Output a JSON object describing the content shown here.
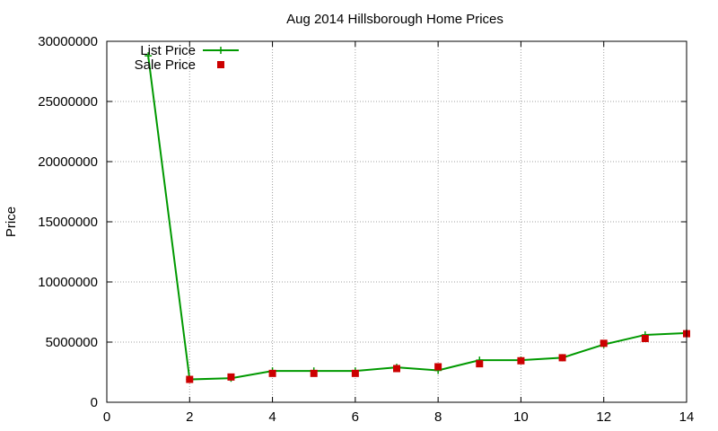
{
  "chart_data": {
    "type": "line",
    "title": "Aug 2014 Hillsborough Home Prices",
    "xlabel": "",
    "ylabel": "Price",
    "xlim": [
      0,
      14
    ],
    "ylim": [
      0,
      30000000
    ],
    "x_ticks": [
      "0",
      "2",
      "4",
      "6",
      "8",
      "10",
      "12",
      "14"
    ],
    "y_ticks": [
      "0",
      "5000000",
      "10000000",
      "15000000",
      "20000000",
      "25000000",
      "30000000"
    ],
    "grid": true,
    "legend_position": "top-left",
    "series": [
      {
        "name": "List Price",
        "style": "line-with-plus-markers",
        "color": "#009900",
        "points": [
          {
            "x": 1,
            "y": 28800000
          },
          {
            "x": 2,
            "y": 1900000
          },
          {
            "x": 3,
            "y": 2000000
          },
          {
            "x": 4,
            "y": 2600000
          },
          {
            "x": 5,
            "y": 2600000
          },
          {
            "x": 6,
            "y": 2600000
          },
          {
            "x": 7,
            "y": 2900000
          },
          {
            "x": 8,
            "y": 2650000
          },
          {
            "x": 9,
            "y": 3500000
          },
          {
            "x": 10,
            "y": 3500000
          },
          {
            "x": 11,
            "y": 3700000
          },
          {
            "x": 12,
            "y": 4800000
          },
          {
            "x": 13,
            "y": 5600000
          },
          {
            "x": 14,
            "y": 5750000
          }
        ]
      },
      {
        "name": "Sale Price",
        "style": "square-markers",
        "color": "#cc0000",
        "points": [
          {
            "x": 2,
            "y": 1900000
          },
          {
            "x": 3,
            "y": 2100000
          },
          {
            "x": 4,
            "y": 2400000
          },
          {
            "x": 5,
            "y": 2400000
          },
          {
            "x": 6,
            "y": 2400000
          },
          {
            "x": 7,
            "y": 2800000
          },
          {
            "x": 8,
            "y": 2950000
          },
          {
            "x": 9,
            "y": 3200000
          },
          {
            "x": 10,
            "y": 3450000
          },
          {
            "x": 11,
            "y": 3700000
          },
          {
            "x": 12,
            "y": 4900000
          },
          {
            "x": 13,
            "y": 5300000
          },
          {
            "x": 14,
            "y": 5700000
          }
        ]
      }
    ]
  }
}
